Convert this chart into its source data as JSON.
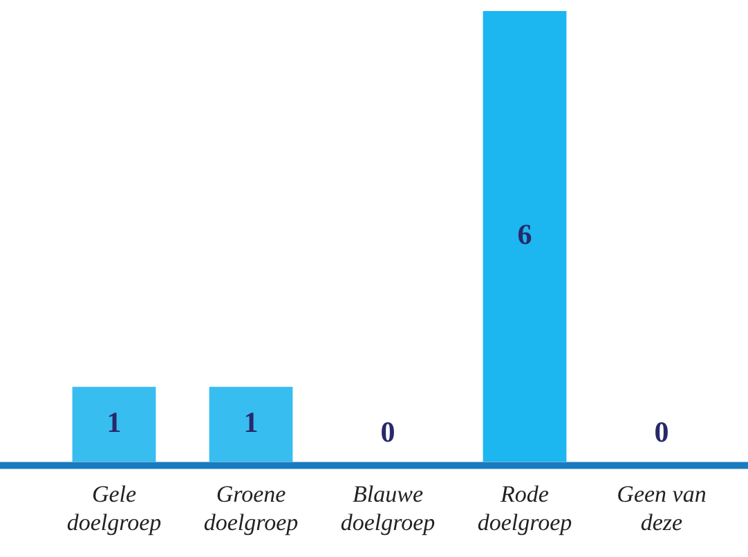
{
  "chart_data": {
    "type": "bar",
    "categories": [
      "Gele doelgroep",
      "Groene doelgroep",
      "Blauwe doelgroep",
      "Rode doelgroep",
      "Geen van deze"
    ],
    "values": [
      1,
      1,
      0,
      6,
      0
    ],
    "colors": [
      "#38bdf0",
      "#38bdf0",
      "#38bdf0",
      "#1cb6f0",
      "#38bdf0"
    ],
    "data_labels": true,
    "grid": false,
    "legend": false
  }
}
